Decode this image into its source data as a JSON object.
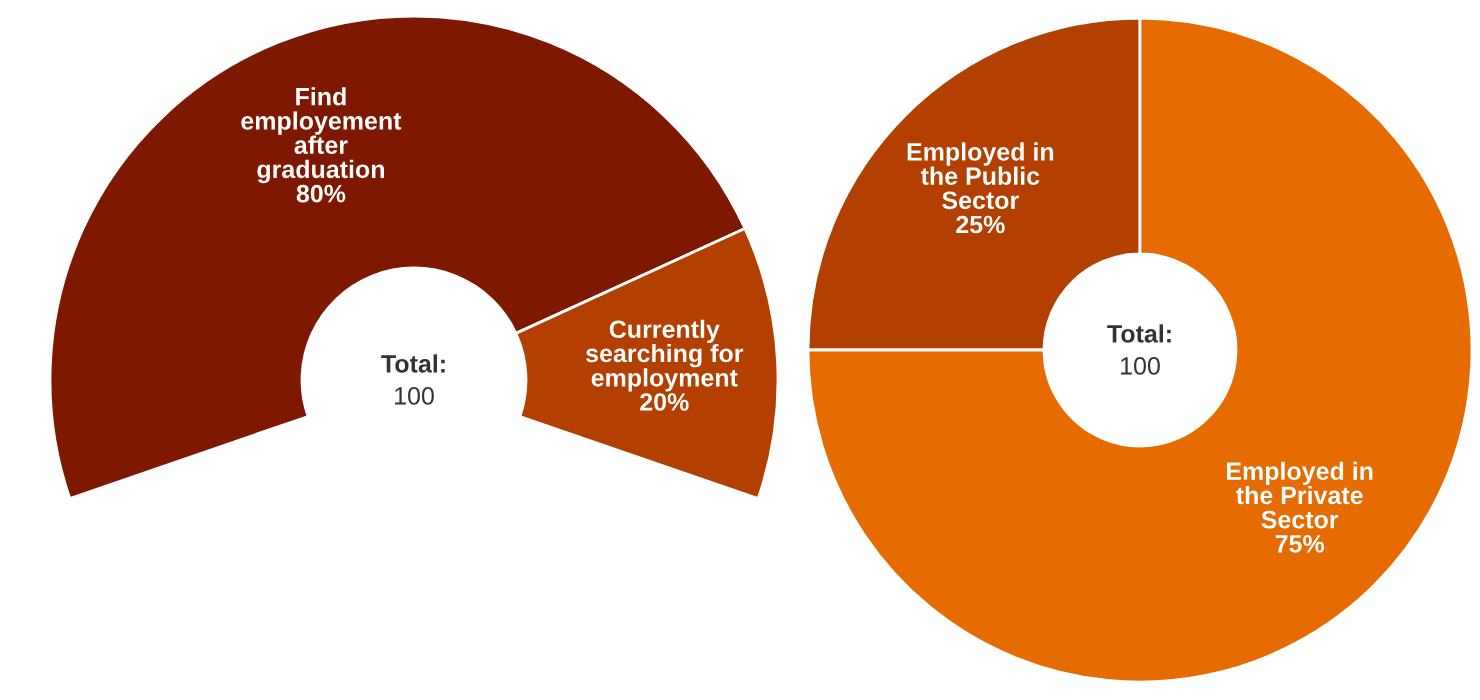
{
  "chart_data": [
    {
      "type": "donut",
      "categories": [
        "Find employement after graduation",
        "Currently searching for employment"
      ],
      "values": [
        80,
        20
      ],
      "value_labels": [
        "80%",
        "20%"
      ],
      "colors": [
        "#7f1800",
        "#b34000"
      ],
      "annotations": [
        "Total:",
        "100"
      ]
    },
    {
      "type": "donut",
      "categories": [
        "Employed in the Public Sector",
        "Employed in the Private Sector"
      ],
      "values": [
        25,
        75
      ],
      "value_labels": [
        "25%",
        "75%"
      ],
      "colors": [
        "#b34000",
        "#e66b00"
      ],
      "annotations": [
        "Total:",
        "100"
      ]
    }
  ]
}
